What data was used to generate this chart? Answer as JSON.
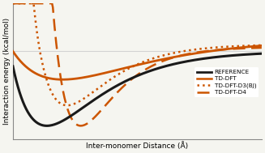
{
  "title": "",
  "xlabel": "Inter-monomer Distance (Å)",
  "ylabel": "Interaction energy (kcal/mol)",
  "xlim": [
    3.0,
    8.5
  ],
  "ylim": [
    -6.5,
    3.5
  ],
  "hline_y": 0.0,
  "colors": {
    "reference": "#1a1a1a",
    "td_dft": "#cc5500",
    "td_dft_d3bj": "#cc5500",
    "td_dft_d4": "#cc5500"
  },
  "legend_labels": [
    "REFERENCE",
    "TD-DFT",
    "TD-DFT-D3(BJ)",
    "TD-DFT-D4"
  ],
  "background_color": "#f5f5f0",
  "axis_background": "#f5f5f0"
}
